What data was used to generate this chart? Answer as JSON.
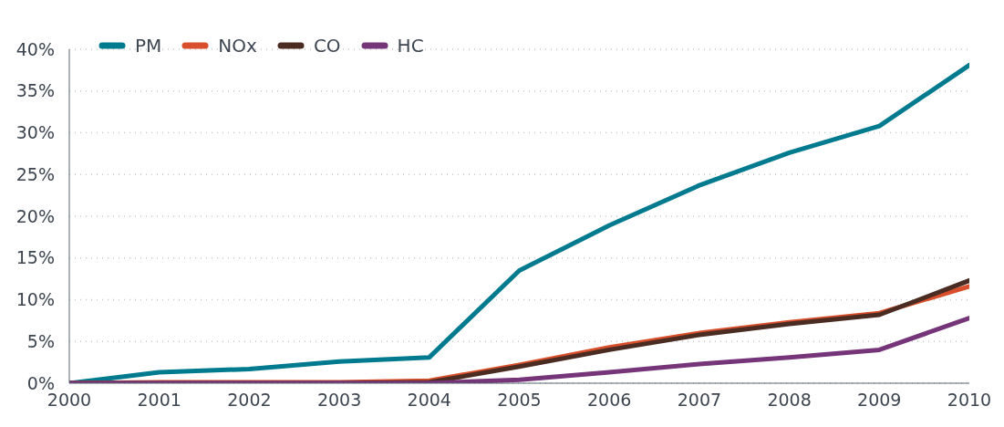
{
  "chart_data": {
    "type": "line",
    "x": [
      2000,
      2001,
      2002,
      2003,
      2004,
      2005,
      2006,
      2007,
      2008,
      2009,
      2010
    ],
    "xlim": [
      2000,
      2010
    ],
    "xticks": [
      2000,
      2001,
      2002,
      2003,
      2004,
      2005,
      2006,
      2007,
      2008,
      2009,
      2010
    ],
    "ylim": [
      0,
      40
    ],
    "yticks": [
      {
        "value": 0,
        "label": "0%"
      },
      {
        "value": 5,
        "label": "5%"
      },
      {
        "value": 10,
        "label": "10%"
      },
      {
        "value": 15,
        "label": "15%"
      },
      {
        "value": 20,
        "label": "20%"
      },
      {
        "value": 25,
        "label": "25%"
      },
      {
        "value": 30,
        "label": "30%"
      },
      {
        "value": 35,
        "label": "35%"
      },
      {
        "value": 40,
        "label": "40%"
      }
    ],
    "grid": "y",
    "legend": "top left",
    "marker": "none",
    "line_style": "solid",
    "series": [
      {
        "name": "PM",
        "color": "#007a8e",
        "values": [
          0,
          1.3,
          1.7,
          2.6,
          3.1,
          13.5,
          18.9,
          23.7,
          27.6,
          30.8,
          38.1
        ]
      },
      {
        "name": "NOx",
        "color": "#d94f2b",
        "values": [
          0,
          0.1,
          0.1,
          0.1,
          0.3,
          2.2,
          4.3,
          6.0,
          7.3,
          8.4,
          11.6
        ]
      },
      {
        "name": "CO",
        "color": "#4a2c22",
        "values": [
          0,
          0,
          0,
          0,
          0.1,
          2.0,
          4.0,
          5.8,
          7.1,
          8.2,
          12.3
        ]
      },
      {
        "name": "HC",
        "color": "#763579",
        "values": [
          0,
          0,
          0,
          0,
          0,
          0.4,
          1.3,
          2.3,
          3.1,
          4.0,
          7.8
        ]
      }
    ]
  }
}
